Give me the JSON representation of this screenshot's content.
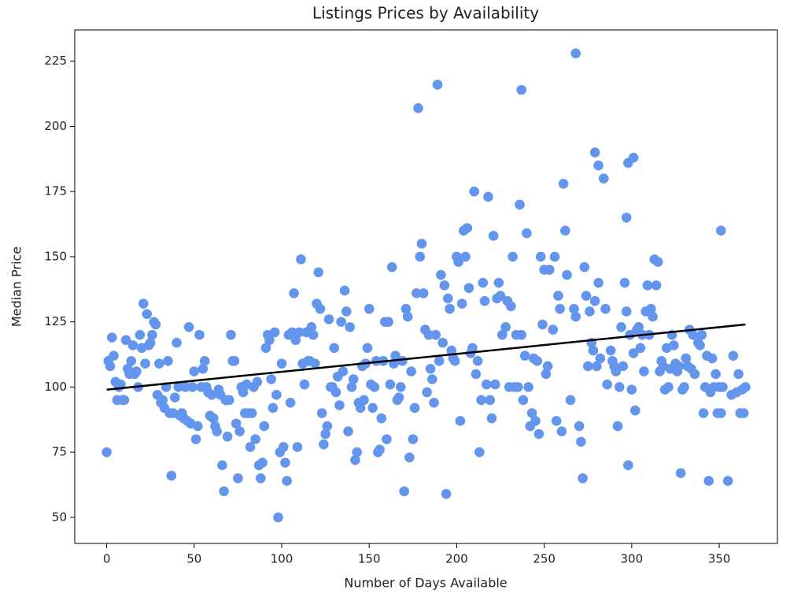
{
  "chart_data": {
    "type": "scatter",
    "title": "Listings Prices by Availability",
    "xlabel": "Number of Days Available",
    "ylabel": "Median Price",
    "xlim": [
      -18.25,
      383.25
    ],
    "ylim": [
      40,
      237
    ],
    "xticks": [
      0,
      50,
      100,
      150,
      200,
      250,
      300,
      350
    ],
    "yticks": [
      50,
      75,
      100,
      125,
      150,
      175,
      200,
      225
    ],
    "grid": false,
    "series": [
      {
        "color": "#6495ed",
        "style": "points",
        "x": [
          0,
          1,
          2,
          3,
          4,
          5,
          6,
          7,
          8,
          9,
          10,
          11,
          12,
          13,
          14,
          15,
          16,
          17,
          18,
          19,
          20,
          21,
          22,
          23,
          24,
          25,
          26,
          27,
          28,
          29,
          30,
          31,
          32,
          33,
          34,
          35,
          36,
          37,
          38,
          39,
          40,
          41,
          42,
          43,
          44,
          45,
          46,
          47,
          48,
          49,
          50,
          51,
          52,
          53,
          54,
          55,
          56,
          57,
          58,
          59,
          60,
          61,
          62,
          63,
          64,
          65,
          66,
          67,
          68,
          69,
          70,
          71,
          72,
          73,
          74,
          75,
          76,
          77,
          78,
          79,
          80,
          81,
          82,
          83,
          84,
          85,
          86,
          87,
          88,
          89,
          90,
          91,
          92,
          93,
          94,
          95,
          96,
          97,
          98,
          99,
          100,
          101,
          102,
          103,
          104,
          105,
          106,
          107,
          108,
          109,
          110,
          111,
          112,
          113,
          114,
          115,
          116,
          117,
          118,
          119,
          120,
          121,
          122,
          123,
          124,
          125,
          126,
          127,
          128,
          129,
          130,
          131,
          132,
          133,
          134,
          135,
          136,
          137,
          138,
          139,
          140,
          141,
          142,
          143,
          144,
          145,
          146,
          147,
          148,
          149,
          150,
          151,
          152,
          153,
          154,
          155,
          156,
          157,
          158,
          159,
          160,
          161,
          162,
          163,
          164,
          165,
          166,
          167,
          168,
          169,
          170,
          171,
          172,
          173,
          174,
          175,
          176,
          177,
          178,
          179,
          180,
          181,
          182,
          183,
          184,
          185,
          186,
          187,
          188,
          189,
          190,
          191,
          192,
          193,
          194,
          195,
          196,
          197,
          198,
          199,
          200,
          201,
          202,
          203,
          204,
          205,
          206,
          207,
          208,
          209,
          210,
          211,
          212,
          213,
          214,
          215,
          216,
          217,
          218,
          219,
          220,
          221,
          222,
          223,
          224,
          225,
          226,
          237,
          228,
          229,
          230,
          231,
          232,
          233,
          234,
          235,
          236,
          237,
          238,
          239,
          240,
          241,
          242,
          243,
          244,
          245,
          246,
          247,
          248,
          249,
          250,
          251,
          252,
          253,
          268,
          255,
          256,
          257,
          258,
          259,
          260,
          261,
          262,
          263,
          279,
          265,
          281,
          267,
          268,
          284,
          270,
          271,
          272,
          273,
          274,
          275,
          276,
          277,
          278,
          279,
          280,
          281,
          282,
          298,
          297,
          285,
          286,
          301,
          288,
          289,
          290,
          291,
          292,
          293,
          294,
          295,
          296,
          297,
          298,
          299,
          300,
          301,
          302,
          303,
          304,
          305,
          306,
          307,
          308,
          309,
          310,
          311,
          312,
          313,
          314,
          315,
          316,
          317,
          318,
          319,
          320,
          321,
          322,
          323,
          324,
          325,
          326,
          327,
          328,
          329,
          330,
          331,
          332,
          333,
          334,
          335,
          336,
          351,
          338,
          339,
          340,
          341,
          342,
          343,
          344,
          345,
          346,
          347,
          348,
          349,
          350,
          351,
          352,
          355,
          357,
          358,
          360,
          361,
          362,
          363,
          364,
          365
        ],
        "values": [
          75,
          110,
          108,
          119,
          112,
          102,
          95,
          100,
          101,
          95,
          95,
          118,
          107,
          105,
          110,
          116,
          105,
          106,
          100,
          120,
          115,
          132,
          109,
          128,
          116,
          117,
          120,
          125,
          124,
          97,
          109,
          94,
          95,
          92,
          100,
          110,
          90,
          66,
          90,
          96,
          117,
          100,
          89,
          90,
          88,
          100,
          87,
          123,
          86,
          100,
          106,
          80,
          85,
          120,
          100,
          107,
          110,
          100,
          98,
          89,
          97,
          88,
          85,
          83,
          99,
          97,
          70,
          60,
          95,
          81,
          95,
          120,
          110,
          110,
          86,
          65,
          83,
          100,
          98,
          90,
          101,
          90,
          77,
          90,
          100,
          80,
          102,
          70,
          65,
          71,
          85,
          115,
          120,
          118,
          103,
          92,
          121,
          97,
          50,
          75,
          109,
          77,
          71,
          64,
          120,
          94,
          121,
          136,
          118,
          77,
          121,
          149,
          109,
          101,
          121,
          110,
          110,
          123,
          120,
          109,
          132,
          144,
          130,
          90,
          78,
          82,
          85,
          126,
          100,
          100,
          115,
          98,
          104,
          93,
          125,
          106,
          137,
          129,
          83,
          123,
          100,
          103,
          72,
          75,
          94,
          92,
          108,
          95,
          109,
          115,
          130,
          101,
          92,
          100,
          110,
          75,
          76,
          88,
          110,
          125,
          80,
          125,
          101,
          146,
          109,
          112,
          95,
          96,
          100,
          110,
          60,
          130,
          127,
          73,
          106,
          80,
          92,
          136,
          207,
          150,
          155,
          136,
          122,
          98,
          120,
          107,
          103,
          94,
          120,
          216,
          110,
          143,
          117,
          139,
          59,
          134,
          130,
          114,
          111,
          110,
          150,
          148,
          87,
          132,
          160,
          150,
          161,
          138,
          113,
          115,
          175,
          105,
          110,
          75,
          95,
          140,
          133,
          101,
          173,
          95,
          88,
          158,
          101,
          134,
          140,
          135,
          120,
          214,
          123,
          133,
          100,
          131,
          150,
          100,
          120,
          100,
          170,
          120,
          95,
          112,
          159,
          100,
          85,
          90,
          111,
          87,
          110,
          82,
          150,
          124,
          145,
          105,
          108,
          145,
          228,
          122,
          150,
          87,
          135,
          130,
          83,
          178,
          160,
          143,
          190,
          95,
          185,
          130,
          127,
          180,
          85,
          79,
          65,
          146,
          135,
          108,
          129,
          117,
          114,
          133,
          108,
          140,
          111,
          186,
          165,
          130,
          101,
          188,
          114,
          110,
          108,
          106,
          85,
          100,
          123,
          108,
          140,
          129,
          70,
          120,
          99,
          113,
          91,
          122,
          123,
          115,
          120,
          106,
          129,
          139,
          120,
          130,
          127,
          149,
          139,
          148,
          106,
          110,
          108,
          99,
          115,
          100,
          107,
          120,
          116,
          109,
          106,
          108,
          67,
          99,
          100,
          111,
          108,
          122,
          107,
          120,
          105,
          160,
          117,
          116,
          120,
          90,
          100,
          112,
          64,
          98,
          111,
          100,
          105,
          90,
          100,
          90,
          100,
          64,
          97,
          112,
          98,
          105,
          90,
          99,
          90,
          100
        ]
      },
      {
        "color": "#000000",
        "style": "line",
        "x": [
          0,
          365
        ],
        "values": [
          99,
          124
        ]
      }
    ]
  }
}
